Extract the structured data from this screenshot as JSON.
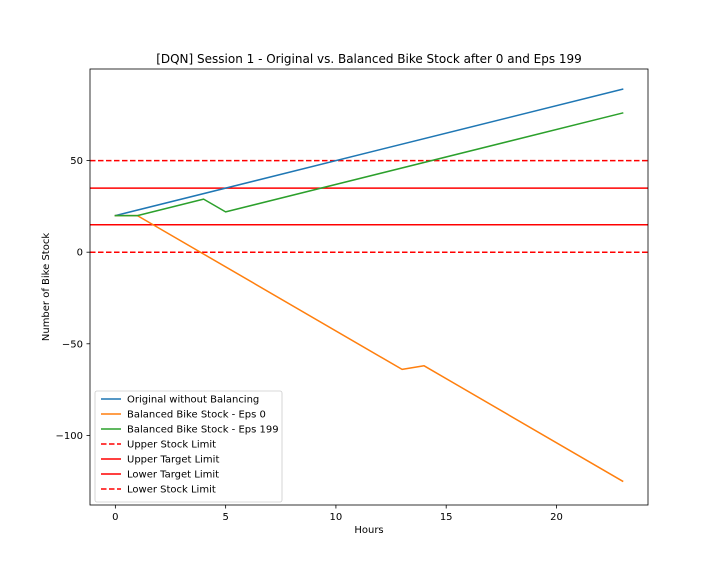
{
  "chart_data": {
    "type": "line",
    "title": "[DQN] Session 1 - Original vs. Balanced Bike Stock after 0 and Eps 199",
    "xlabel": "Hours",
    "ylabel": "Number of Bike Stock",
    "xlim": [
      -1.15,
      24.15
    ],
    "ylim": [
      -138,
      100
    ],
    "xticks": [
      0,
      5,
      10,
      15,
      20
    ],
    "yticks": [
      -100,
      -50,
      0,
      50
    ],
    "grid": false,
    "legend_position": "lower-left",
    "series": [
      {
        "name": "Original without Balancing",
        "color": "#1f77b4",
        "style": "solid",
        "x": [
          0,
          23
        ],
        "y": [
          20,
          89
        ]
      },
      {
        "name": "Balanced Bike Stock - Eps 0",
        "color": "#ff7f0e",
        "style": "solid",
        "x": [
          0,
          1,
          13,
          14,
          23
        ],
        "y": [
          20,
          20,
          -64,
          -62,
          -125
        ]
      },
      {
        "name": "Balanced Bike Stock - Eps 199",
        "color": "#2ca02c",
        "style": "solid",
        "x": [
          0,
          1,
          4,
          5,
          23
        ],
        "y": [
          20,
          20,
          29,
          22,
          76
        ]
      }
    ],
    "hlines": [
      {
        "name": "Upper Stock Limit",
        "y": 50,
        "color": "#ff0000",
        "style": "dashed"
      },
      {
        "name": "Upper Target Limit",
        "y": 35,
        "color": "#ff0000",
        "style": "solid"
      },
      {
        "name": "Lower Target Limit",
        "y": 15,
        "color": "#ff0000",
        "style": "solid"
      },
      {
        "name": "Lower Stock Limit",
        "y": 0,
        "color": "#ff0000",
        "style": "dashed"
      }
    ],
    "legend": [
      {
        "label": "Original without Balancing",
        "color": "#1f77b4",
        "style": "solid"
      },
      {
        "label": "Balanced Bike Stock - Eps 0",
        "color": "#ff7f0e",
        "style": "solid"
      },
      {
        "label": "Balanced Bike Stock - Eps 199",
        "color": "#2ca02c",
        "style": "solid"
      },
      {
        "label": "Upper Stock Limit",
        "color": "#ff0000",
        "style": "dashed"
      },
      {
        "label": "Upper Target Limit",
        "color": "#ff0000",
        "style": "solid"
      },
      {
        "label": "Lower Target Limit",
        "color": "#ff0000",
        "style": "solid"
      },
      {
        "label": "Lower Stock Limit",
        "color": "#ff0000",
        "style": "dashed"
      }
    ]
  }
}
